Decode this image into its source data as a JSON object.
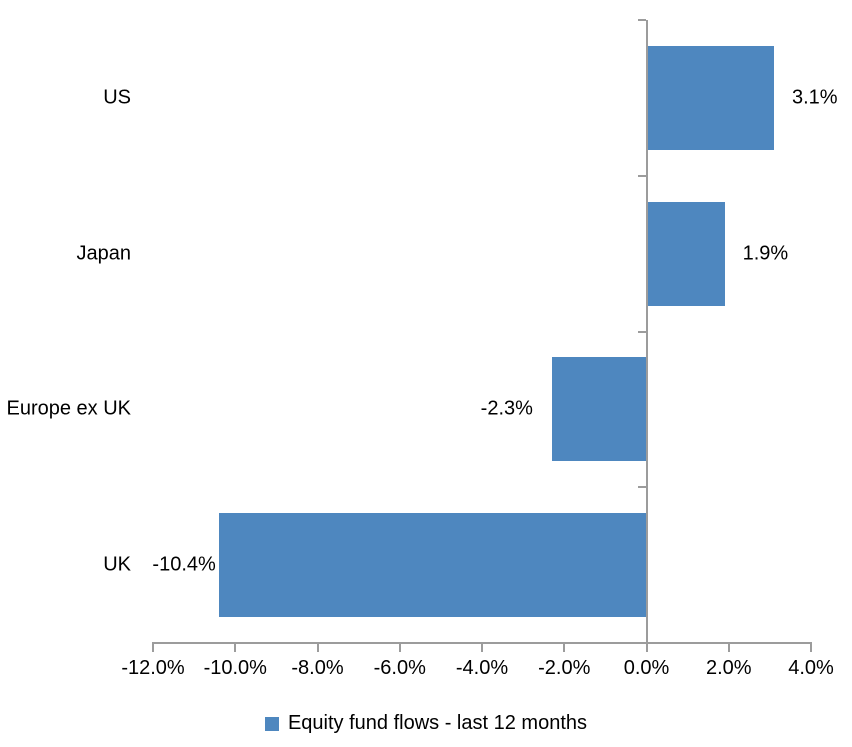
{
  "chart_data": {
    "type": "bar",
    "orientation": "horizontal",
    "title": "",
    "categories": [
      "US",
      "Japan",
      "Europe ex UK",
      "UK"
    ],
    "values": [
      3.1,
      1.9,
      -2.3,
      -10.4
    ],
    "data_labels": [
      "3.1%",
      "1.9%",
      "-2.3%",
      "-10.4%"
    ],
    "x_axis": {
      "min": -12,
      "max": 4,
      "step": 2,
      "tick_values": [
        -12,
        -10,
        -8,
        -6,
        -4,
        -2,
        0,
        2,
        4
      ],
      "tick_labels": [
        "-12.0%",
        "-10.0%",
        "-8.0%",
        "-6.0%",
        "-4.0%",
        "-2.0%",
        "0.0%",
        "2.0%",
        "4.0%"
      ]
    },
    "grid": false,
    "legend": {
      "position": "bottom",
      "label": "Equity fund flows - last 12 months"
    },
    "colors": {
      "bar": "#4E87BF",
      "axis": "#9C9C9C",
      "text": "#000000",
      "background": "#FFFFFF"
    }
  }
}
